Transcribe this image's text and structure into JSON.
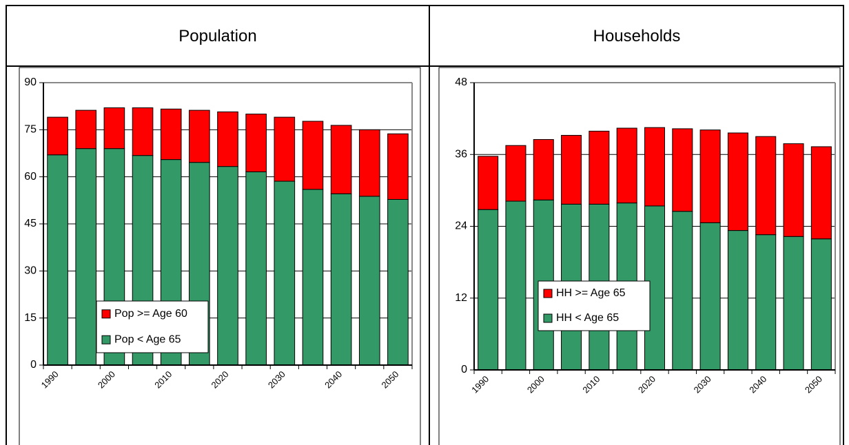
{
  "chart_data": [
    {
      "type": "stacked_bar",
      "title": "Population",
      "categories": [
        "1990",
        null,
        "2000",
        null,
        "2010",
        null,
        "2020",
        null,
        "2030",
        null,
        "2040",
        null,
        "2050"
      ],
      "series": [
        {
          "name": "Pop < Age 65",
          "color": "#339966",
          "values": [
            67,
            69,
            69,
            66.8,
            65.5,
            64.6,
            63.3,
            61.6,
            58.6,
            56,
            54.6,
            53.8,
            52.8
          ]
        },
        {
          "name": "Pop >= Age 60",
          "color": "#ff0000",
          "values": [
            12,
            12.2,
            13,
            15.2,
            16.1,
            16.6,
            17.4,
            18.4,
            20.4,
            21.7,
            21.8,
            21.2,
            20.9
          ]
        }
      ],
      "ylim": [
        0,
        90
      ],
      "yticks": [
        0,
        15,
        30,
        45,
        60,
        75,
        90
      ],
      "grid": true
    },
    {
      "type": "stacked_bar",
      "title": "Households",
      "categories": [
        "1990",
        null,
        "2000",
        null,
        "2010",
        null,
        "2020",
        null,
        "2030",
        null,
        "2040",
        null,
        "2050"
      ],
      "series": [
        {
          "name": "HH < Age 65",
          "color": "#339966",
          "values": [
            26.8,
            28.2,
            28.4,
            27.7,
            27.7,
            27.9,
            27.4,
            26.5,
            24.6,
            23.3,
            22.6,
            22.3,
            21.9
          ]
        },
        {
          "name": "HH >= Age 65",
          "color": "#ff0000",
          "values": [
            8.9,
            9.3,
            10.1,
            11.5,
            12.2,
            12.5,
            13.1,
            13.8,
            15.5,
            16.3,
            16.4,
            15.5,
            15.4
          ]
        }
      ],
      "ylim": [
        0,
        48
      ],
      "yticks": [
        0,
        12,
        24,
        36,
        48
      ],
      "grid": true
    }
  ]
}
